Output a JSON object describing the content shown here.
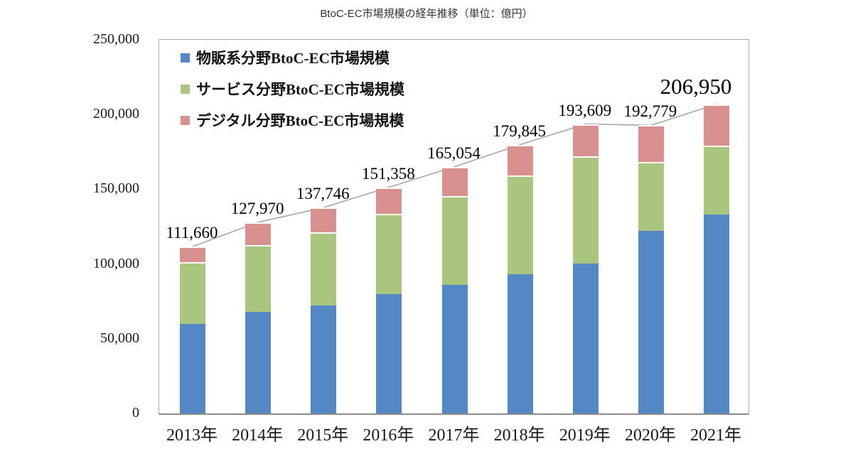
{
  "chart_data": {
    "type": "bar",
    "stacked": true,
    "title": "BtoC-EC市場規模の経年推移（単位：億円）",
    "unit": "億円",
    "categories": [
      "2013年",
      "2014年",
      "2015年",
      "2016年",
      "2017年",
      "2018年",
      "2019年",
      "2020年",
      "2021年"
    ],
    "series": [
      {
        "name": "物販系分野BtoC-EC市場規模",
        "color": "#5388C4",
        "values": [
          59931,
          68042,
          72398,
          80043,
          86008,
          92992,
          100515,
          122333,
          132865
        ]
      },
      {
        "name": "サービス分野BtoC-EC市場規模",
        "color": "#A9C57E",
        "values": [
          41310,
          44816,
          49014,
          53532,
          59568,
          66471,
          71672,
          45832,
          46424
        ]
      },
      {
        "name": "デジタル分野BtoC-EC市場規模",
        "color": "#D9918F",
        "values": [
          10419,
          15111,
          16334,
          17782,
          19478,
          20382,
          21422,
          24614,
          27661
        ]
      }
    ],
    "totals": [
      111660,
      127970,
      137746,
      151358,
      165054,
      179845,
      193609,
      192779,
      206950
    ],
    "total_labels": [
      "111,660",
      "127,970",
      "137,746",
      "151,358",
      "165,054",
      "179,845",
      "193,609",
      "192,779",
      "206,950"
    ],
    "y_ticks": [
      "250,000",
      "200,000",
      "150,000",
      "100,000",
      "50,000",
      "0"
    ],
    "ylim": [
      0,
      250000
    ],
    "grid": false,
    "legend_position": "top-left-inside",
    "trend_line": true,
    "trend_line_color": "#A6A6A6",
    "axis_color": "#8C8C8C",
    "emphasized_label_index": 8
  }
}
